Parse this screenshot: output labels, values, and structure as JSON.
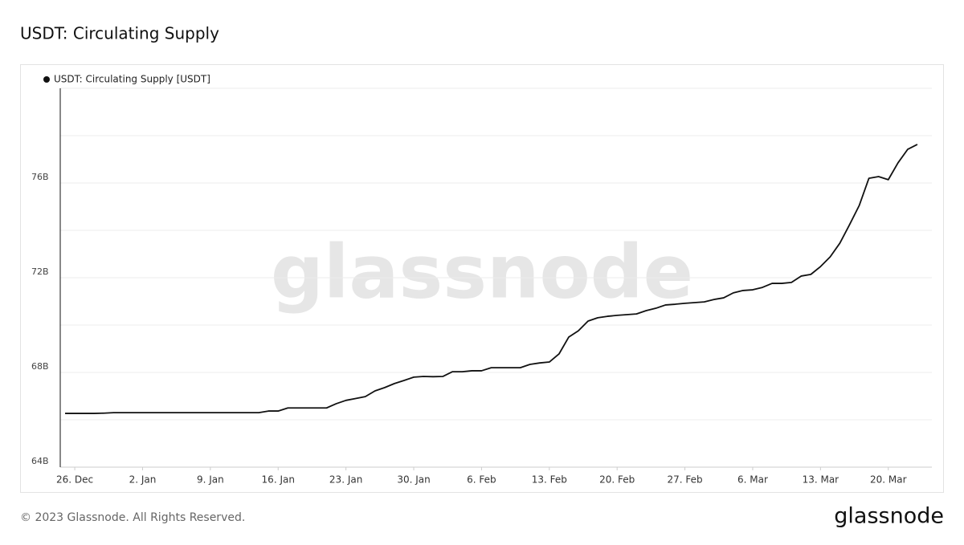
{
  "chart_data": {
    "type": "line",
    "title": "USDT: Circulating Supply",
    "footer": "© 2023 Glassnode. All Rights Reserved.",
    "brand": "glassnode",
    "watermark": "glassnode",
    "x": [
      -1,
      0,
      1,
      2,
      3,
      4,
      5,
      6,
      7,
      8,
      9,
      10,
      11,
      12,
      13,
      14,
      15,
      16,
      17,
      18,
      19,
      20,
      21,
      22,
      23,
      24,
      25,
      26,
      27,
      28,
      29,
      30,
      31,
      32,
      33,
      34,
      35,
      36,
      37,
      38,
      39,
      40,
      41,
      42,
      43,
      44,
      45,
      46,
      47,
      48,
      49,
      50,
      51,
      52,
      53,
      54,
      55,
      56,
      57,
      58,
      59,
      60,
      61,
      62,
      63,
      64,
      65,
      66,
      67,
      68,
      69,
      70,
      71,
      72,
      73,
      74,
      75,
      76,
      77,
      78,
      79,
      80,
      81,
      82,
      83,
      84,
      85,
      86,
      87
    ],
    "series": [
      {
        "name": "USDT: Circulating Supply [USDT]",
        "color": "#111111",
        "values": [
          66.27,
          66.27,
          66.27,
          66.27,
          66.28,
          66.3,
          66.3,
          66.3,
          66.3,
          66.3,
          66.3,
          66.3,
          66.3,
          66.3,
          66.3,
          66.3,
          66.3,
          66.3,
          66.3,
          66.3,
          66.3,
          66.37,
          66.37,
          66.5,
          66.5,
          66.5,
          66.5,
          66.5,
          66.68,
          66.82,
          66.9,
          66.98,
          67.22,
          67.36,
          67.53,
          67.66,
          67.8,
          67.83,
          67.82,
          67.83,
          68.03,
          68.03,
          68.07,
          68.07,
          68.2,
          68.2,
          68.2,
          68.2,
          68.34,
          68.4,
          68.44,
          68.78,
          69.49,
          69.76,
          70.17,
          70.31,
          70.37,
          70.41,
          70.44,
          70.47,
          70.61,
          70.71,
          70.85,
          70.88,
          70.92,
          70.95,
          70.98,
          71.08,
          71.15,
          71.36,
          71.46,
          71.49,
          71.59,
          71.76,
          71.76,
          71.8,
          72.07,
          72.14,
          72.47,
          72.88,
          73.46,
          74.24,
          75.05,
          76.2,
          76.27,
          76.14,
          76.85,
          77.42,
          77.63
        ]
      }
    ],
    "xlim": [
      -1.5,
      88.5
    ],
    "xticks": [
      {
        "value": 0,
        "label": "26. Dec"
      },
      {
        "value": 7,
        "label": "2. Jan"
      },
      {
        "value": 14,
        "label": "9. Jan"
      },
      {
        "value": 21,
        "label": "16. Jan"
      },
      {
        "value": 28,
        "label": "23. Jan"
      },
      {
        "value": 35,
        "label": "30. Jan"
      },
      {
        "value": 42,
        "label": "6. Feb"
      },
      {
        "value": 49,
        "label": "13. Feb"
      },
      {
        "value": 56,
        "label": "20. Feb"
      },
      {
        "value": 63,
        "label": "27. Feb"
      },
      {
        "value": 70,
        "label": "6. Mar"
      },
      {
        "value": 77,
        "label": "13. Mar"
      },
      {
        "value": 84,
        "label": "20. Mar"
      }
    ],
    "ylim": [
      64,
      80
    ],
    "yticks": [
      {
        "value": 64,
        "label": "64B"
      },
      {
        "value": 68,
        "label": "68B"
      },
      {
        "value": 72,
        "label": "72B"
      },
      {
        "value": 76,
        "label": "76B"
      }
    ],
    "ygrid": [
      66,
      70,
      74,
      78,
      80
    ],
    "grid": true
  }
}
